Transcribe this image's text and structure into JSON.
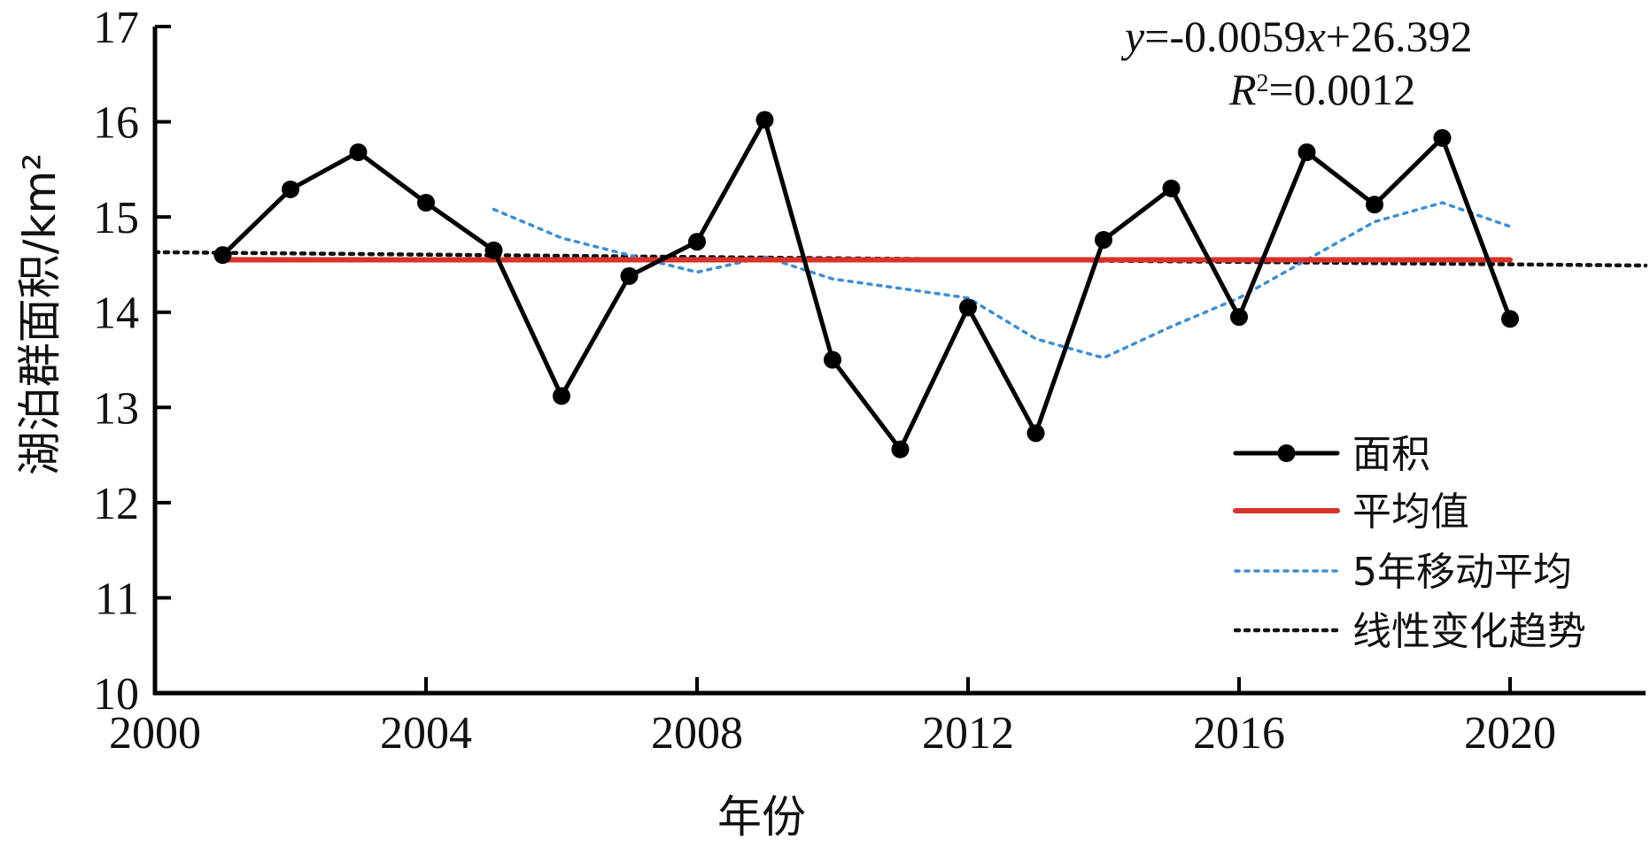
{
  "chart_data": {
    "type": "line",
    "title": "",
    "xlabel": "年份",
    "ylabel": "湖泊群面积/km²",
    "xlim": [
      2000,
      2022
    ],
    "ylim": [
      10,
      17
    ],
    "x_ticks": [
      2000,
      2004,
      2008,
      2012,
      2016,
      2020
    ],
    "y_ticks": [
      10,
      11,
      12,
      13,
      14,
      15,
      16,
      17
    ],
    "grid": false,
    "legend_position": "bottom-right",
    "series": [
      {
        "name": "面积",
        "style": "line-markers",
        "color": "#000000",
        "x": [
          2001,
          2002,
          2003,
          2004,
          2005,
          2006,
          2007,
          2008,
          2009,
          2010,
          2011,
          2012,
          2013,
          2014,
          2015,
          2016,
          2017,
          2018,
          2019,
          2020
        ],
        "y": [
          14.6,
          15.29,
          15.68,
          15.15,
          14.65,
          13.12,
          14.38,
          14.74,
          16.02,
          13.5,
          12.56,
          14.05,
          12.73,
          14.76,
          15.3,
          13.95,
          15.68,
          15.13,
          15.83,
          13.93
        ]
      },
      {
        "name": "平均值",
        "style": "solid",
        "color": "#d7332a",
        "x": [
          2001,
          2020
        ],
        "y": [
          14.55,
          14.55
        ]
      },
      {
        "name": "5年移动平均",
        "style": "dotted",
        "color": "#3b8fd4",
        "x": [
          2005,
          2006,
          2007,
          2008,
          2009,
          2010,
          2011,
          2012,
          2013,
          2014,
          2015,
          2016,
          2017,
          2018,
          2019,
          2020
        ],
        "y": [
          15.08,
          14.78,
          14.6,
          14.42,
          14.58,
          14.35,
          14.25,
          14.15,
          13.72,
          13.52,
          13.85,
          14.15,
          14.55,
          14.95,
          15.15,
          14.9
        ]
      },
      {
        "name": "线性变化趋势",
        "style": "dotted",
        "color": "#111111",
        "x": [
          2000,
          2022
        ],
        "y": [
          14.63,
          14.49
        ]
      }
    ],
    "annotations": {
      "equation_italic_y": "y",
      "equation_part1": "=-0.0059",
      "equation_italic_x": "x",
      "equation_part2": "+26.392",
      "r2_italic": "R",
      "r2_sup": "2",
      "r2_value": "=0.0012"
    }
  }
}
